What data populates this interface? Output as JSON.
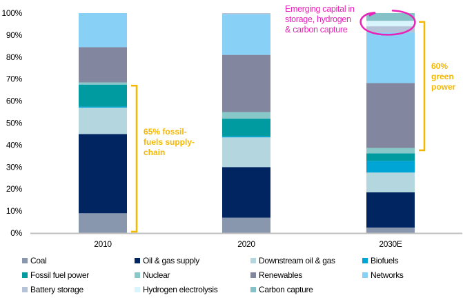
{
  "chart_data": {
    "type": "bar",
    "stacked": true,
    "title": "",
    "xlabel": "",
    "ylabel": "",
    "ylim": [
      0,
      100
    ],
    "y_ticks": [
      "0%",
      "10%",
      "20%",
      "30%",
      "40%",
      "50%",
      "60%",
      "70%",
      "80%",
      "90%",
      "100%"
    ],
    "grid": false,
    "legend_position": "bottom",
    "categories": [
      "2010",
      "2020",
      "2030E"
    ],
    "series": [
      {
        "name": "Coal",
        "color": "#8896ae",
        "values": [
          9,
          7,
          2.5
        ]
      },
      {
        "name": "Oil & gas supply",
        "color": "#002561",
        "values": [
          36,
          23,
          16
        ]
      },
      {
        "name": "Downstream oil & gas",
        "color": "#b4d6df",
        "values": [
          12,
          13.5,
          9
        ]
      },
      {
        "name": "Biofuels",
        "color": "#00a5d6",
        "values": [
          0.5,
          0.5,
          5.3
        ]
      },
      {
        "name": "Fossil fuel power",
        "color": "#009aa1",
        "values": [
          10,
          8,
          3.4
        ]
      },
      {
        "name": "Nuclear",
        "color": "#88c8c8",
        "values": [
          1,
          3,
          2.5
        ]
      },
      {
        "name": "Renewables",
        "color": "#82879f",
        "values": [
          16,
          26,
          29.5
        ]
      },
      {
        "name": "Networks",
        "color": "#88d0f5",
        "values": [
          15.5,
          18.5,
          23
        ]
      },
      {
        "name": "Battery storage",
        "color": "#b4c3d8",
        "values": [
          0,
          0.5,
          2.8
        ]
      },
      {
        "name": "Hydrogen electrolysis",
        "color": "#d8f4fd",
        "values": [
          0,
          0,
          2.5
        ]
      },
      {
        "name": "Carbon capture",
        "color": "#84c2c8",
        "values": [
          0,
          0,
          3.5
        ]
      }
    ],
    "annotations": [
      {
        "text_lines": [
          "65% fossil-",
          "fuels supply-",
          "chain"
        ],
        "color": "#f5b800",
        "category": "2010",
        "range": [
          0,
          67
        ],
        "kind": "bracket"
      },
      {
        "text_lines": [
          "60%",
          "green",
          "power"
        ],
        "color": "#f5b800",
        "category": "2030E",
        "range": [
          37,
          96
        ],
        "kind": "bracket"
      },
      {
        "text_lines": [
          "Emerging capital in",
          "storage, hydrogen",
          "& carbon capture"
        ],
        "color": "#e823b8",
        "category": "2030E",
        "range": [
          91,
          100
        ],
        "kind": "circle"
      }
    ]
  },
  "legend": {
    "items": [
      "Coal",
      "Oil & gas supply",
      "Downstream oil & gas",
      "Biofuels",
      "Fossil fuel power",
      "Nuclear",
      "Renewables",
      "Networks",
      "Battery storage",
      "Hydrogen electrolysis",
      "Carbon capture"
    ]
  }
}
